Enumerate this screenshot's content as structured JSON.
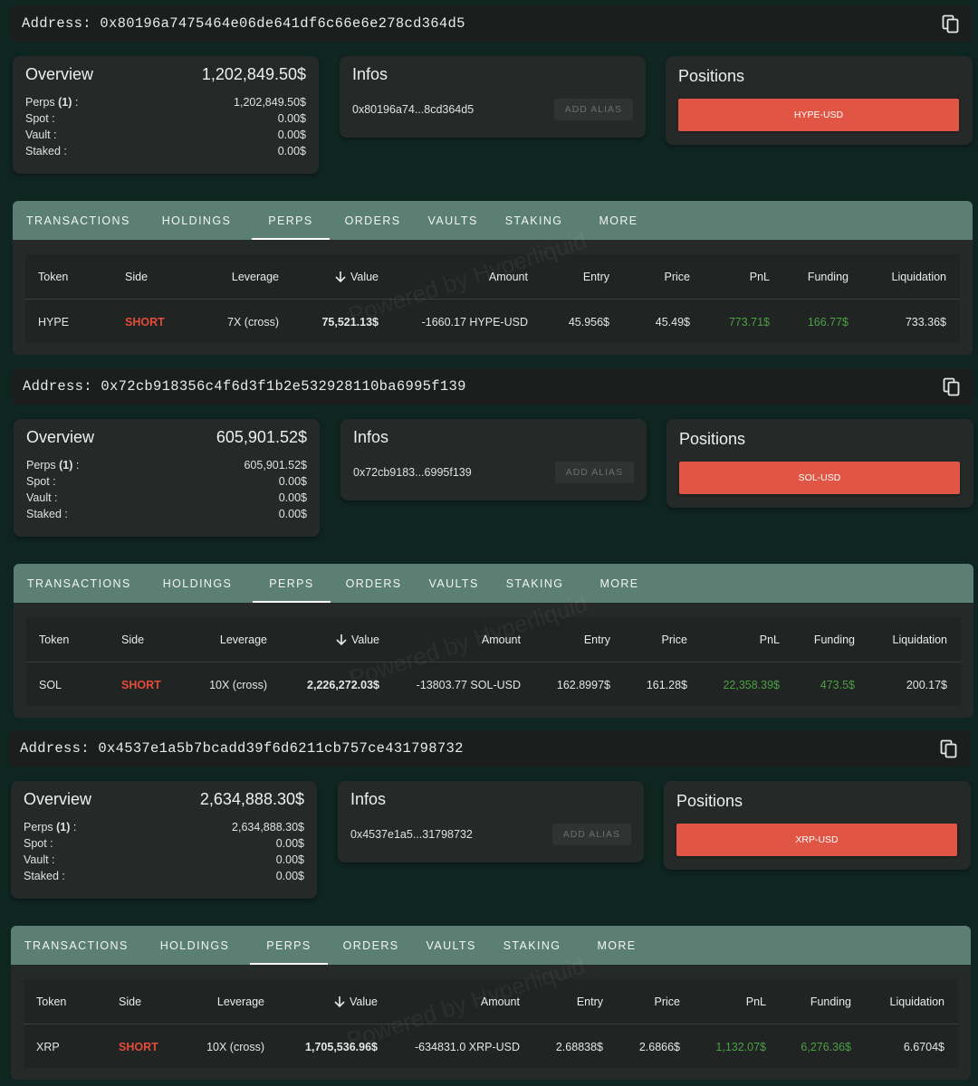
{
  "common": {
    "address_label": "Address:",
    "overview_title": "Overview",
    "infos_title": "Infos",
    "positions_title": "Positions",
    "add_alias": "ADD ALIAS",
    "row_labels": {
      "perps": "Perps",
      "perps_count": "(1)",
      "colon": " :",
      "spot": "Spot :",
      "vault": "Vault :",
      "staked": "Staked :"
    },
    "tabs": [
      "TRANSACTIONS",
      "HOLDINGS",
      "PERPS",
      "ORDERS",
      "VAULTS",
      "STAKING",
      "MORE"
    ],
    "active_tab": "PERPS",
    "columns": [
      "Token",
      "Side",
      "Leverage",
      "Value",
      "Amount",
      "Entry",
      "Price",
      "PnL",
      "Funding",
      "Liquidation"
    ],
    "sort_icon": "arrow-down-icon",
    "watermark": "Powered by Hyperliquid",
    "colors": {
      "short": "#e34b3b",
      "green": "#4e9e45",
      "position_button": "#e05543",
      "tabbar": "#5c7f73",
      "background": "#0f2520"
    }
  },
  "wallets": [
    {
      "address": "0x80196a7475464e06de641df6c66e6e278cd364d5",
      "overview": {
        "total": "1,202,849.50$",
        "perps": "1,202,849.50$",
        "spot": "0.00$",
        "vault": "0.00$",
        "staked": "0.00$"
      },
      "infos": {
        "short_address": "0x80196a74...8cd364d5"
      },
      "position_button": "HYPE-USD",
      "row": {
        "token": "HYPE",
        "side": "SHORT",
        "leverage": "7X (cross)",
        "value": "75,521.13$",
        "amount": "-1660.17 HYPE-USD",
        "entry": "45.956$",
        "price": "45.49$",
        "pnl": "773.71$",
        "funding": "166.77$",
        "liquidation": "733.36$"
      }
    },
    {
      "address": "0x72cb918356c4f6d3f1b2e532928110ba6995f139",
      "overview": {
        "total": "605,901.52$",
        "perps": "605,901.52$",
        "spot": "0.00$",
        "vault": "0.00$",
        "staked": "0.00$"
      },
      "infos": {
        "short_address": "0x72cb9183...6995f139"
      },
      "position_button": "SOL-USD",
      "row": {
        "token": "SOL",
        "side": "SHORT",
        "leverage": "10X (cross)",
        "value": "2,226,272.03$",
        "amount": "-13803.77 SOL-USD",
        "entry": "162.8997$",
        "price": "161.28$",
        "pnl": "22,358.39$",
        "funding": "473.5$",
        "liquidation": "200.17$"
      }
    },
    {
      "address": "0x4537e1a5b7bcadd39f6d6211cb757ce431798732",
      "overview": {
        "total": "2,634,888.30$",
        "perps": "2,634,888.30$",
        "spot": "0.00$",
        "vault": "0.00$",
        "staked": "0.00$"
      },
      "infos": {
        "short_address": "0x4537e1a5...31798732"
      },
      "position_button": "XRP-USD",
      "row": {
        "token": "XRP",
        "side": "SHORT",
        "leverage": "10X (cross)",
        "value": "1,705,536.96$",
        "amount": "-634831.0 XRP-USD",
        "entry": "2.68838$",
        "price": "2.6866$",
        "pnl": "1,132.07$",
        "funding": "6,276.36$",
        "liquidation": "6.6704$"
      }
    }
  ]
}
